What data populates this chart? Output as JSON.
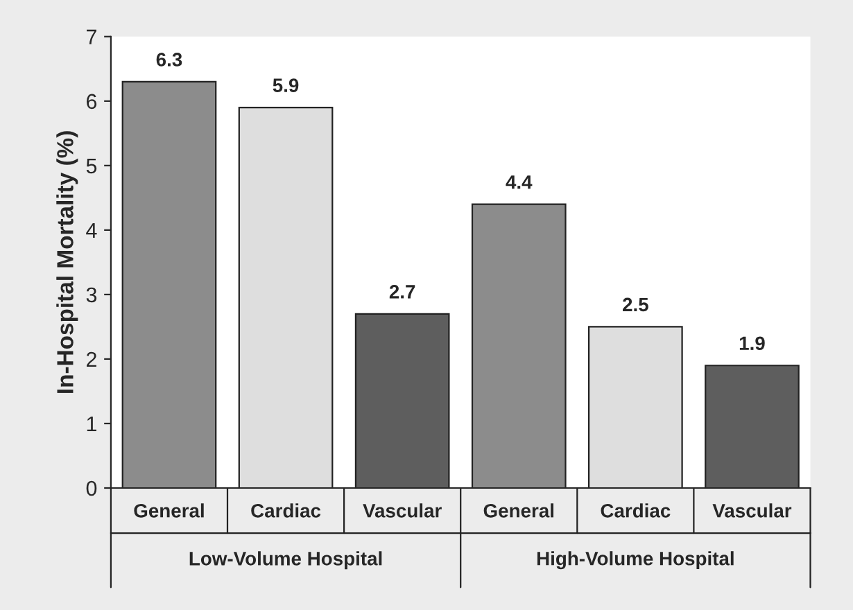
{
  "chart_data": {
    "type": "bar",
    "ylabel": "In-Hospital Mortality (%)",
    "categories": [
      "General",
      "Cardiac",
      "Vascular",
      "General",
      "Cardiac",
      "Vascular"
    ],
    "values": [
      6.3,
      5.9,
      2.7,
      4.4,
      2.5,
      1.9
    ],
    "colors": [
      "#8c8c8c",
      "#dedede",
      "#5e5e5e",
      "#8c8c8c",
      "#dedede",
      "#5e5e5e"
    ],
    "ylim": [
      0,
      7
    ],
    "yticks": [
      0,
      1,
      2,
      3,
      4,
      5,
      6,
      7
    ],
    "data_labels": true,
    "grid": false,
    "annotations": [
      "Low-Volume Hospital",
      "High-Volume Hospital"
    ]
  }
}
